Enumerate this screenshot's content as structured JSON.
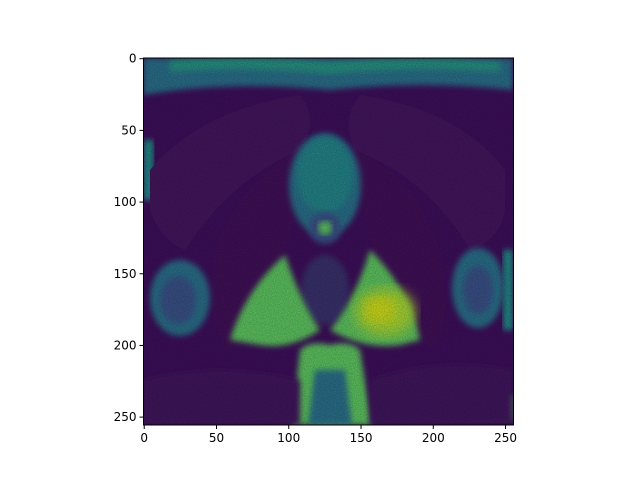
{
  "figure": {
    "x_ticks": [
      {
        "value": 0,
        "label": "0"
      },
      {
        "value": 50,
        "label": "50"
      },
      {
        "value": 100,
        "label": "100"
      },
      {
        "value": 150,
        "label": "150"
      },
      {
        "value": 200,
        "label": "200"
      },
      {
        "value": 250,
        "label": "250"
      }
    ],
    "y_ticks": [
      {
        "value": 0,
        "label": "0"
      },
      {
        "value": 50,
        "label": "50"
      },
      {
        "value": 100,
        "label": "100"
      },
      {
        "value": 150,
        "label": "150"
      },
      {
        "value": 200,
        "label": "200"
      },
      {
        "value": 250,
        "label": "250"
      }
    ],
    "colormap": {
      "c0": "#440154",
      "c1": "#482677",
      "c2": "#3b528b",
      "c3": "#2c728e",
      "c4": "#21918c",
      "c5": "#28ae80",
      "c6": "#5ec962",
      "c7": "#addc30",
      "c8": "#fde725"
    }
  }
}
